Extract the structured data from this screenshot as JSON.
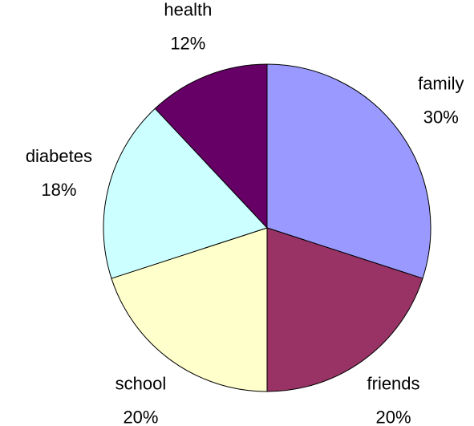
{
  "chart_data": {
    "type": "pie",
    "categories": [
      "family",
      "friends",
      "school",
      "diabetes",
      "health"
    ],
    "values": [
      30,
      20,
      20,
      18,
      12
    ],
    "value_labels": [
      "30%",
      "20%",
      "20%",
      "18%",
      "12%"
    ],
    "colors": [
      "#9999ff",
      "#993366",
      "#ffffcc",
      "#ccffff",
      "#660066"
    ]
  }
}
